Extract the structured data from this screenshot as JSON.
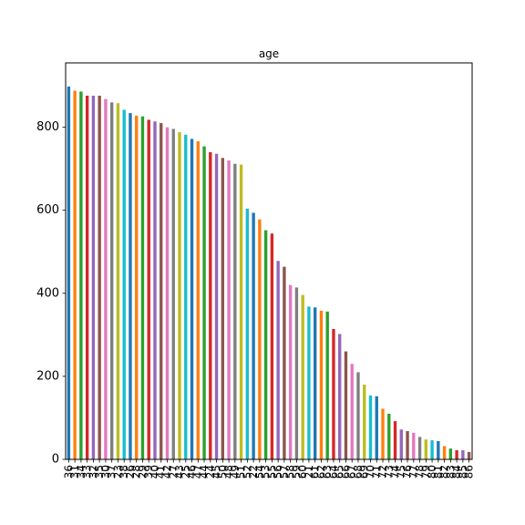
{
  "chart_data": {
    "type": "bar",
    "title": "age",
    "xlabel": "",
    "ylabel": "",
    "ylim": [
      0,
      955
    ],
    "yticks": [
      0,
      200,
      400,
      600,
      800
    ],
    "grid": false,
    "legend": "none",
    "bar_colors": [
      "#1f77b4",
      "#ff7f0e",
      "#2ca02c",
      "#d62728",
      "#9467bd",
      "#8c564b",
      "#e377c2",
      "#7f7f7f",
      "#bcbd22",
      "#17becf"
    ],
    "categories": [
      "36",
      "31",
      "34",
      "33",
      "32",
      "35",
      "30",
      "37",
      "23",
      "38",
      "26",
      "28",
      "29",
      "39",
      "40",
      "41",
      "42",
      "27",
      "43",
      "25",
      "46",
      "47",
      "44",
      "24",
      "45",
      "50",
      "48",
      "49",
      "51",
      "52",
      "22",
      "54",
      "53",
      "55",
      "56",
      "57",
      "58",
      "59",
      "60",
      "21",
      "61",
      "62",
      "63",
      "64",
      "65",
      "66",
      "67",
      "68",
      "69",
      "70",
      "71",
      "72",
      "73",
      "74",
      "75",
      "76",
      "77",
      "78",
      "79",
      "80",
      "81",
      "82",
      "83",
      "84",
      "85",
      "86"
    ],
    "values": [
      898,
      888,
      886,
      876,
      876,
      876,
      868,
      860,
      858,
      842,
      834,
      828,
      826,
      818,
      814,
      810,
      800,
      796,
      788,
      782,
      772,
      766,
      754,
      740,
      736,
      726,
      720,
      712,
      710,
      604,
      594,
      578,
      552,
      544,
      478,
      464,
      420,
      414,
      396,
      368,
      366,
      358,
      356,
      314,
      302,
      260,
      230,
      210,
      180,
      154,
      152,
      122,
      110,
      92,
      72,
      68,
      64,
      54,
      48,
      46,
      44,
      32,
      26,
      22,
      22,
      18
    ]
  }
}
